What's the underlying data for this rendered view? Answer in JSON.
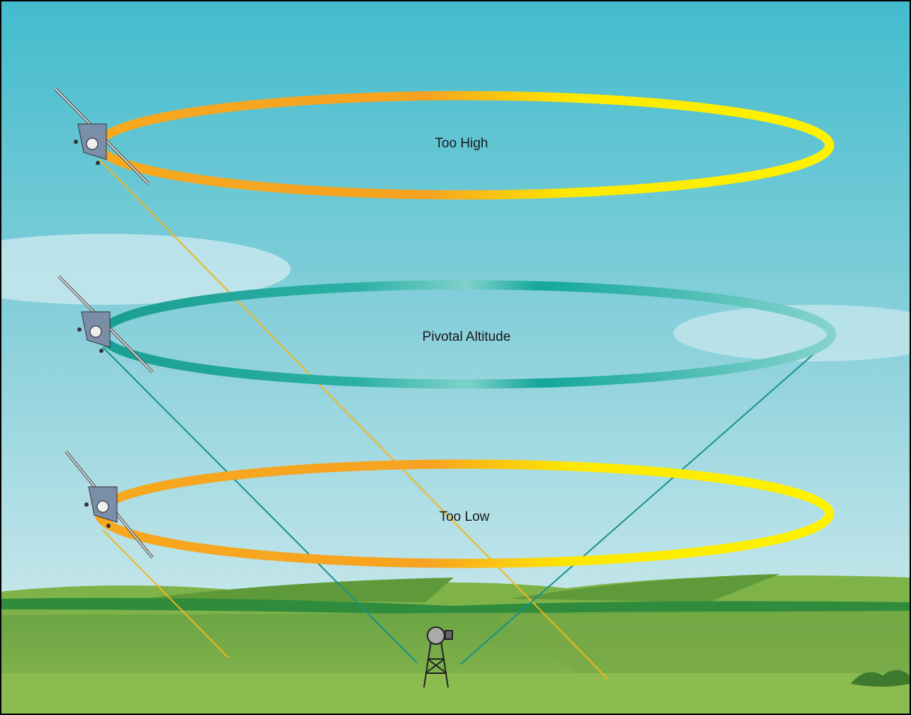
{
  "labels": {
    "too_high": "Too High",
    "pivotal_altitude": "Pivotal Altitude",
    "too_low": "Too Low"
  }
}
